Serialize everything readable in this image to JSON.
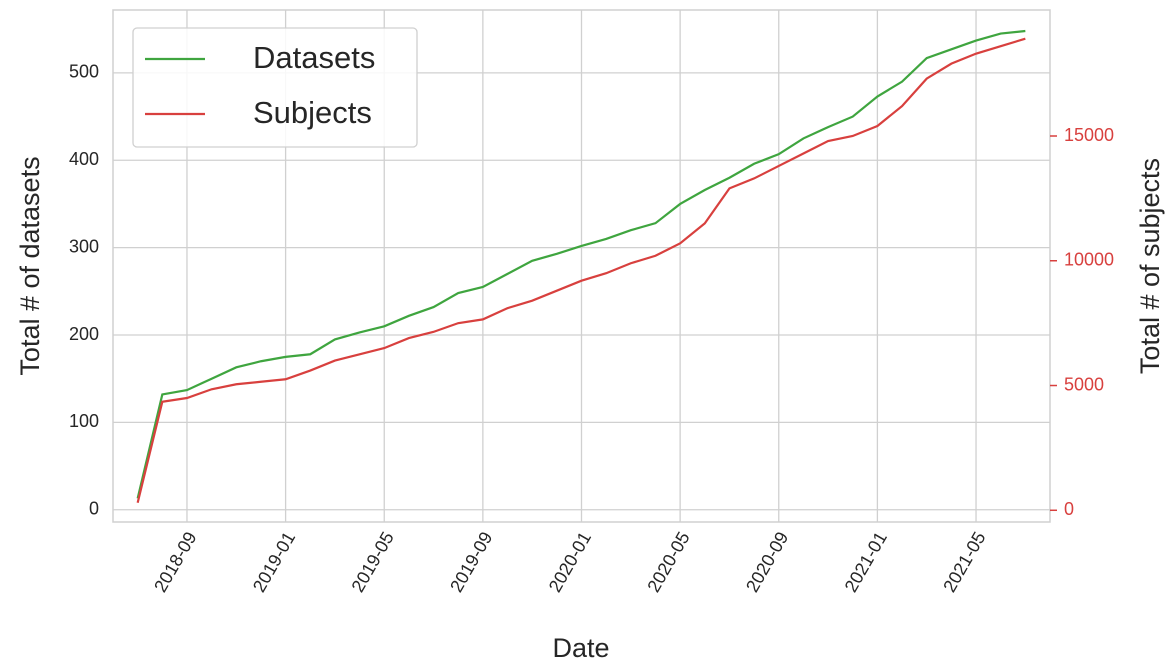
{
  "chart_data": {
    "type": "line",
    "x_label": "Date",
    "y_label": "Total # of datasets",
    "y2_label": "Total # of subjects",
    "x": [
      "2018-07",
      "2018-08",
      "2018-09",
      "2018-10",
      "2018-11",
      "2018-12",
      "2019-01",
      "2019-02",
      "2019-03",
      "2019-04",
      "2019-05",
      "2019-06",
      "2019-07",
      "2019-08",
      "2019-09",
      "2019-10",
      "2019-11",
      "2019-12",
      "2020-01",
      "2020-02",
      "2020-03",
      "2020-04",
      "2020-05",
      "2020-06",
      "2020-07",
      "2020-08",
      "2020-09",
      "2020-10",
      "2020-11",
      "2020-12",
      "2021-01",
      "2021-02",
      "2021-03",
      "2021-04",
      "2021-05",
      "2021-06",
      "2021-07"
    ],
    "series": [
      {
        "name": "Datasets",
        "color": "#3fa53f",
        "axis": "y",
        "values": [
          13,
          132,
          137,
          150,
          163,
          170,
          175,
          178,
          195,
          203,
          210,
          222,
          232,
          248,
          255,
          270,
          285,
          293,
          302,
          310,
          320,
          328,
          350,
          366,
          380,
          396,
          407,
          425,
          438,
          450,
          473,
          490,
          517,
          527,
          537,
          545,
          548
        ]
      },
      {
        "name": "Subjects",
        "color": "#d8403e",
        "axis": "y2",
        "values": [
          300,
          4350,
          4500,
          4850,
          5050,
          5150,
          5250,
          5600,
          6000,
          6250,
          6500,
          6900,
          7150,
          7500,
          7650,
          8100,
          8400,
          8800,
          9200,
          9500,
          9900,
          10200,
          10700,
          11500,
          12900,
          13300,
          13800,
          14300,
          14800,
          15000,
          15400,
          16200,
          17300,
          17900,
          18300,
          18600,
          18900
        ]
      }
    ],
    "xlim": [
      "2018-06",
      "2021-08"
    ],
    "xticks": [
      "2018-09",
      "2019-01",
      "2019-05",
      "2019-09",
      "2020-01",
      "2020-05",
      "2020-09",
      "2021-01",
      "2021-05"
    ],
    "ylim": [
      -14,
      572
    ],
    "yticks": [
      0,
      100,
      200,
      300,
      400,
      500
    ],
    "y2lim": [
      -470,
      20050
    ],
    "y2ticks": [
      0,
      5000,
      10000,
      15000
    ],
    "y2_color": "#d8403e",
    "grid": true,
    "legend": "upper left"
  }
}
